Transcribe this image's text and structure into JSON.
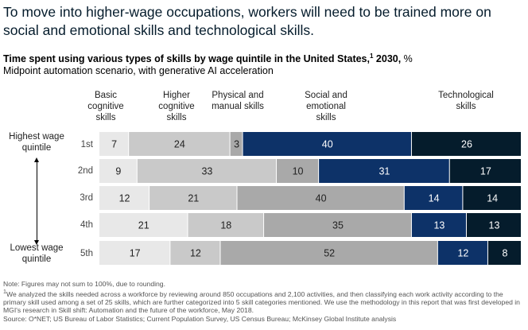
{
  "headline": "To move into higher-wage occupations, workers will need to be trained more on social and emotional skills and technological skills.",
  "colors": {
    "basic": "#e8e8e8",
    "higher": "#c9c9c9",
    "physical": "#a9a9a9",
    "social": "#0d3268",
    "tech": "#051c2c",
    "text_dark": "#222222",
    "text_light": "#ffffff"
  },
  "side_labels": {
    "top": "Highest wage quintile",
    "bottom": "Lowest wage quintile"
  },
  "notes": {
    "note1": "Note: Figures may not sum to 100%, due to rounding.",
    "note2": "We analyzed the skills needed across a workforce by reviewing around 850 occupations and 2,100 activities, and then classifying each work activity according to the primary skill used among a set of 25 skills, which are further categorized into 5 skill categories mentioned. We use the methodology in this report that was first developed in MGI's research in Skill shift: Automation and the future of the workforce, May 2018.",
    "source": "Source: O*NET; US Bureau of Labor Statistics; Current Population Survey, US Census Bureau; McKinsey Global Institute analysis"
  },
  "chart_data": {
    "type": "bar",
    "orientation": "horizontal-stacked-100",
    "title": "Time spent using various types of skills by wage quintile in the United States,",
    "title_footnote": "1",
    "title_year": " 2030, ",
    "unit": "%",
    "subtitle": "Midpoint automation scenario, with generative AI acceleration",
    "categories": [
      "1st",
      "2nd",
      "3rd",
      "4th",
      "5th"
    ],
    "series": [
      {
        "name": "Basic cognitive skills",
        "values": [
          7,
          9,
          12,
          21,
          17
        ]
      },
      {
        "name": "Higher cognitive skills",
        "values": [
          24,
          33,
          21,
          18,
          12
        ]
      },
      {
        "name": "Physical and manual skills",
        "values": [
          3,
          10,
          40,
          35,
          52
        ]
      },
      {
        "name": "Social and emotional skills",
        "values": [
          40,
          31,
          14,
          13,
          12
        ]
      },
      {
        "name": "Technological skills",
        "values": [
          26,
          17,
          14,
          13,
          8
        ]
      }
    ]
  }
}
